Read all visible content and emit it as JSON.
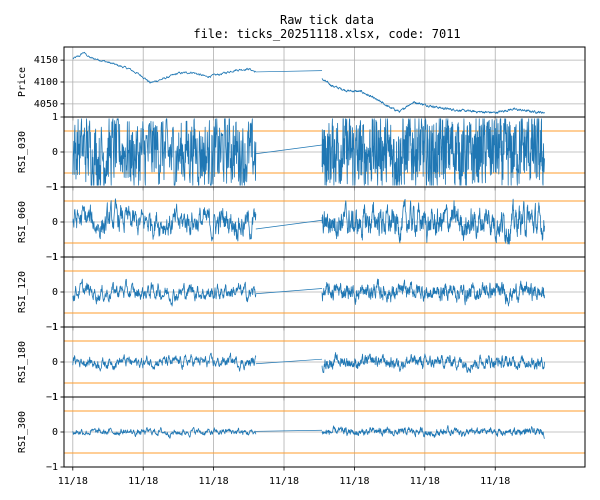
{
  "figure": {
    "title_line1": "Raw tick data",
    "title_line2": "file: ticks_20251118.xlsx, code: 7011"
  },
  "colors": {
    "series": "#1f77b4",
    "threshold": "#ff9e2c",
    "grid": "#b0b0b0",
    "axes": "#000000"
  },
  "chart_data": [
    {
      "type": "line",
      "panel": "price",
      "ylabel": "Price",
      "ylim": [
        4020,
        4180
      ],
      "yticks": [
        4050,
        4100,
        4150
      ],
      "ytick_labels": [
        "4050",
        "4100",
        "4150"
      ],
      "xticks": [
        "11/18",
        "11/18",
        "11/18",
        "11/18",
        "11/18",
        "11/18",
        "11/18"
      ],
      "grid": true,
      "series": [
        {
          "session1_anchors": [
            [
              0.0,
              4153
            ],
            [
              0.02,
              4160
            ],
            [
              0.03,
              4168
            ],
            [
              0.05,
              4155
            ],
            [
              0.08,
              4150
            ],
            [
              0.12,
              4140
            ],
            [
              0.16,
              4130
            ],
            [
              0.2,
              4112
            ],
            [
              0.22,
              4098
            ],
            [
              0.26,
              4108
            ],
            [
              0.3,
              4120
            ],
            [
              0.34,
              4122
            ],
            [
              0.38,
              4112
            ],
            [
              0.42,
              4118
            ],
            [
              0.46,
              4127
            ],
            [
              0.5,
              4130
            ],
            [
              0.52,
              4123
            ]
          ],
          "gap": [
            [
              0.52,
              4123
            ],
            [
              0.708,
              4126
            ]
          ],
          "session2_anchors": [
            [
              0.708,
              4107
            ],
            [
              0.72,
              4100
            ],
            [
              0.74,
              4090
            ],
            [
              0.78,
              4080
            ],
            [
              0.82,
              4078
            ],
            [
              0.85,
              4065
            ],
            [
              0.88,
              4052
            ],
            [
              0.9,
              4042
            ],
            [
              0.93,
              4032
            ],
            [
              0.95,
              4046
            ],
            [
              0.97,
              4054
            ],
            [
              1.0,
              4048
            ],
            [
              1.05,
              4040
            ],
            [
              1.1,
              4035
            ],
            [
              1.15,
              4032
            ],
            [
              1.2,
              4030
            ],
            [
              1.25,
              4038
            ],
            [
              1.3,
              4033
            ],
            [
              1.34,
              4030
            ]
          ]
        }
      ]
    },
    {
      "type": "line",
      "panel": "rsi",
      "ylabel": "RSI_030",
      "ylim": [
        -1,
        1
      ],
      "yticks": [
        -1,
        0,
        1
      ],
      "ytick_labels": [
        "−1",
        "0",
        "1"
      ],
      "thresholds": [
        0.6,
        -0.6
      ],
      "xticks": [
        "11/18",
        "11/18",
        "11/18",
        "11/18",
        "11/18",
        "11/18",
        "11/18"
      ],
      "grid": true,
      "amplitude": 0.7,
      "gap": [
        [
          0.52,
          -0.05
        ],
        [
          0.708,
          0.2
        ]
      ]
    },
    {
      "type": "line",
      "panel": "rsi",
      "ylabel": "RSI_060",
      "ylim": [
        -1,
        1
      ],
      "yticks": [
        -1,
        0,
        1
      ],
      "ytick_labels": [
        "−1",
        "0",
        "1"
      ],
      "thresholds": [
        0.6,
        -0.6
      ],
      "xticks": [
        "11/18",
        "11/18",
        "11/18",
        "11/18",
        "11/18",
        "11/18",
        "11/18"
      ],
      "grid": true,
      "amplitude": 0.5,
      "gap": [
        [
          0.52,
          -0.2
        ],
        [
          0.708,
          0.05
        ]
      ]
    },
    {
      "type": "line",
      "panel": "rsi",
      "ylabel": "RSI_120",
      "ylim": [
        -1,
        1
      ],
      "yticks": [
        -1,
        0,
        1
      ],
      "ytick_labels": [
        "−1",
        "0",
        "1"
      ],
      "thresholds": [
        0.6,
        -0.6
      ],
      "xticks": [
        "11/18",
        "11/18",
        "11/18",
        "11/18",
        "11/18",
        "11/18",
        "11/18"
      ],
      "grid": true,
      "amplitude": 0.28,
      "gap": [
        [
          0.52,
          -0.05
        ],
        [
          0.708,
          0.1
        ]
      ]
    },
    {
      "type": "line",
      "panel": "rsi",
      "ylabel": "RSI_180",
      "ylim": [
        -1,
        1
      ],
      "yticks": [
        -1,
        0,
        1
      ],
      "ytick_labels": [
        "−1",
        "0",
        "1"
      ],
      "thresholds": [
        0.6,
        -0.6
      ],
      "xticks": [
        "11/18",
        "11/18",
        "11/18",
        "11/18",
        "11/18",
        "11/18",
        "11/18"
      ],
      "grid": true,
      "amplitude": 0.2,
      "gap": [
        [
          0.52,
          -0.05
        ],
        [
          0.708,
          0.08
        ]
      ]
    },
    {
      "type": "line",
      "panel": "rsi",
      "ylabel": "RSI_300",
      "ylim": [
        -1,
        1
      ],
      "yticks": [
        -1,
        0,
        1
      ],
      "ytick_labels": [
        "−1",
        "0",
        "1"
      ],
      "thresholds": [
        0.6,
        -0.6
      ],
      "xticks": [
        "11/18",
        "11/18",
        "11/18",
        "11/18",
        "11/18",
        "11/18",
        "11/18"
      ],
      "grid": true,
      "amplitude": 0.12,
      "gap": [
        [
          0.52,
          0.02
        ],
        [
          0.708,
          0.05
        ]
      ]
    }
  ]
}
